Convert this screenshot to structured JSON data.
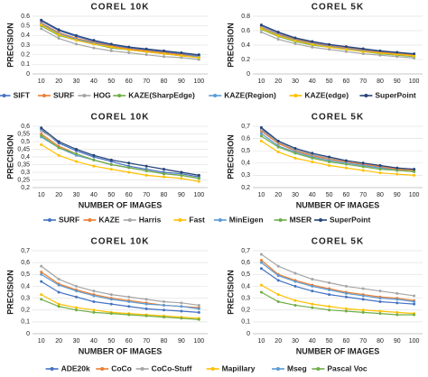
{
  "chart_data": [
    {
      "type": "line",
      "title": "COREL 10K",
      "y_label": "PRECISION",
      "categories": [
        10,
        20,
        30,
        40,
        50,
        60,
        70,
        80,
        90,
        100
      ],
      "ylim": [
        0,
        0.6
      ],
      "yticks": [
        0,
        0.1,
        0.2,
        0.3,
        0.4,
        0.5,
        0.6
      ],
      "grid": true,
      "legend": "bottom",
      "series": [
        {
          "name": "SIFT",
          "color": "#4472c4",
          "values": [
            0.55,
            0.45,
            0.39,
            0.34,
            0.3,
            0.27,
            0.25,
            0.23,
            0.21,
            0.19
          ]
        },
        {
          "name": "SURF",
          "color": "#ed7d31",
          "values": [
            0.53,
            0.43,
            0.37,
            0.33,
            0.29,
            0.26,
            0.24,
            0.22,
            0.2,
            0.18
          ]
        },
        {
          "name": "HOG",
          "color": "#a5a5a5",
          "values": [
            0.47,
            0.37,
            0.31,
            0.27,
            0.24,
            0.22,
            0.2,
            0.18,
            0.17,
            0.15
          ]
        },
        {
          "name": "KAZE(SharpEdge)",
          "color": "#70ad47",
          "values": [
            0.5,
            0.4,
            0.35,
            0.31,
            0.27,
            0.25,
            0.23,
            0.21,
            0.19,
            0.17
          ]
        },
        {
          "name": "KAZE(Region)",
          "color": "#5b9bd5",
          "values": [
            0.52,
            0.42,
            0.36,
            0.32,
            0.28,
            0.25,
            0.23,
            0.21,
            0.19,
            0.18
          ]
        },
        {
          "name": "KAZE(edge)",
          "color": "#ffc000",
          "values": [
            0.51,
            0.41,
            0.35,
            0.31,
            0.28,
            0.25,
            0.23,
            0.21,
            0.19,
            0.17
          ]
        },
        {
          "name": "SuperPoint",
          "color": "#264478",
          "values": [
            0.56,
            0.46,
            0.4,
            0.35,
            0.31,
            0.28,
            0.26,
            0.24,
            0.22,
            0.2
          ]
        }
      ]
    },
    {
      "type": "line",
      "title": "COREL 5K",
      "y_label": "PRECISION",
      "categories": [
        10,
        20,
        30,
        40,
        50,
        60,
        70,
        80,
        90,
        100
      ],
      "ylim": [
        0,
        0.8
      ],
      "yticks": [
        0,
        0.2,
        0.4,
        0.6,
        0.8
      ],
      "grid": true,
      "series": [
        {
          "color": "#4472c4",
          "values": [
            0.67,
            0.57,
            0.49,
            0.44,
            0.4,
            0.37,
            0.34,
            0.31,
            0.29,
            0.27
          ]
        },
        {
          "color": "#ed7d31",
          "values": [
            0.65,
            0.55,
            0.48,
            0.43,
            0.39,
            0.36,
            0.33,
            0.3,
            0.28,
            0.26
          ]
        },
        {
          "color": "#a5a5a5",
          "values": [
            0.58,
            0.48,
            0.42,
            0.37,
            0.34,
            0.31,
            0.28,
            0.26,
            0.24,
            0.22
          ]
        },
        {
          "color": "#70ad47",
          "values": [
            0.62,
            0.52,
            0.45,
            0.4,
            0.37,
            0.34,
            0.31,
            0.28,
            0.26,
            0.24
          ]
        },
        {
          "color": "#5b9bd5",
          "values": [
            0.64,
            0.54,
            0.47,
            0.42,
            0.38,
            0.35,
            0.32,
            0.29,
            0.27,
            0.25
          ]
        },
        {
          "color": "#ffc000",
          "values": [
            0.63,
            0.53,
            0.46,
            0.41,
            0.37,
            0.34,
            0.31,
            0.29,
            0.27,
            0.25
          ]
        },
        {
          "color": "#264478",
          "values": [
            0.68,
            0.58,
            0.5,
            0.45,
            0.41,
            0.38,
            0.35,
            0.32,
            0.3,
            0.28
          ]
        }
      ]
    },
    {
      "type": "line",
      "title": "COREL 10K",
      "y_label": "PRECISION",
      "x_label": "NUMBER OF IMAGES",
      "categories": [
        10,
        20,
        30,
        40,
        50,
        60,
        70,
        80,
        90,
        100
      ],
      "ylim": [
        0.2,
        0.6
      ],
      "yticks": [
        {
          "value": 0.2,
          "label": "0,2"
        },
        {
          "value": 0.25,
          "label": "0,25"
        },
        {
          "value": 0.3,
          "label": "0,3"
        },
        {
          "value": 0.35,
          "label": "0,35"
        },
        {
          "value": 0.4,
          "label": "0,4"
        },
        {
          "value": 0.45,
          "label": "0,45"
        },
        {
          "value": 0.5,
          "label": "0,5"
        },
        {
          "value": 0.55,
          "label": "0,55"
        },
        {
          "value": 0.6,
          "label": "0,6"
        }
      ],
      "grid": true,
      "legend": "bottom",
      "series": [
        {
          "name": "SURF",
          "color": "#4472c4",
          "values": [
            0.58,
            0.49,
            0.44,
            0.4,
            0.37,
            0.34,
            0.32,
            0.3,
            0.29,
            0.27
          ]
        },
        {
          "name": "KAZE",
          "color": "#ed7d31",
          "values": [
            0.55,
            0.47,
            0.42,
            0.38,
            0.35,
            0.33,
            0.31,
            0.29,
            0.28,
            0.26
          ]
        },
        {
          "name": "Harris",
          "color": "#a5a5a5",
          "values": [
            0.57,
            0.5,
            0.45,
            0.41,
            0.38,
            0.36,
            0.34,
            0.32,
            0.3,
            0.28
          ]
        },
        {
          "name": "Fast",
          "color": "#ffc000",
          "values": [
            0.48,
            0.41,
            0.37,
            0.34,
            0.32,
            0.3,
            0.28,
            0.27,
            0.26,
            0.24
          ]
        },
        {
          "name": "MinEigen",
          "color": "#5b9bd5",
          "values": [
            0.53,
            0.46,
            0.41,
            0.38,
            0.35,
            0.33,
            0.31,
            0.29,
            0.28,
            0.26
          ]
        },
        {
          "name": "MSER",
          "color": "#70ad47",
          "values": [
            0.54,
            0.46,
            0.42,
            0.38,
            0.35,
            0.33,
            0.31,
            0.29,
            0.28,
            0.26
          ]
        },
        {
          "name": "SuperPoint",
          "color": "#264478",
          "values": [
            0.59,
            0.5,
            0.45,
            0.41,
            0.38,
            0.36,
            0.34,
            0.32,
            0.3,
            0.28
          ]
        }
      ]
    },
    {
      "type": "line",
      "title": "COREL 5K",
      "y_label": "PRECISION",
      "x_label": "NUMBER OF IMAGES",
      "categories": [
        10,
        20,
        30,
        40,
        50,
        60,
        70,
        80,
        90,
        100
      ],
      "ylim": [
        0.2,
        0.7
      ],
      "yticks": [
        {
          "value": 0.2,
          "label": "0,2"
        },
        {
          "value": 0.3,
          "label": "0,3"
        },
        {
          "value": 0.4,
          "label": "0,4"
        },
        {
          "value": 0.5,
          "label": "0,5"
        },
        {
          "value": 0.6,
          "label": "0,6"
        },
        {
          "value": 0.7,
          "label": "0,7"
        }
      ],
      "grid": true,
      "series": [
        {
          "color": "#4472c4",
          "values": [
            0.68,
            0.57,
            0.51,
            0.47,
            0.44,
            0.41,
            0.39,
            0.37,
            0.35,
            0.34
          ]
        },
        {
          "color": "#ed7d31",
          "values": [
            0.66,
            0.56,
            0.5,
            0.46,
            0.43,
            0.41,
            0.39,
            0.37,
            0.35,
            0.34
          ]
        },
        {
          "color": "#a5a5a5",
          "values": [
            0.67,
            0.57,
            0.51,
            0.47,
            0.44,
            0.42,
            0.4,
            0.38,
            0.36,
            0.35
          ]
        },
        {
          "color": "#ffc000",
          "values": [
            0.58,
            0.49,
            0.44,
            0.41,
            0.38,
            0.36,
            0.34,
            0.32,
            0.31,
            0.3
          ]
        },
        {
          "color": "#5b9bd5",
          "values": [
            0.64,
            0.54,
            0.49,
            0.45,
            0.42,
            0.4,
            0.38,
            0.36,
            0.34,
            0.33
          ]
        },
        {
          "color": "#70ad47",
          "values": [
            0.62,
            0.53,
            0.48,
            0.44,
            0.41,
            0.39,
            0.37,
            0.35,
            0.34,
            0.33
          ]
        },
        {
          "color": "#264478",
          "values": [
            0.69,
            0.58,
            0.52,
            0.48,
            0.45,
            0.42,
            0.4,
            0.38,
            0.36,
            0.35
          ]
        }
      ]
    },
    {
      "type": "line",
      "title": "COREL 10K",
      "y_label": "PRECISION",
      "x_label": "NUMBER OF IMAGES",
      "categories": [
        10,
        20,
        30,
        40,
        50,
        60,
        70,
        80,
        90,
        100
      ],
      "ylim": [
        0,
        0.7
      ],
      "yticks": [
        0,
        {
          "value": 0.1,
          "label": "0,1"
        },
        {
          "value": 0.2,
          "label": "0,2"
        },
        {
          "value": 0.3,
          "label": "0,3"
        },
        {
          "value": 0.4,
          "label": "0,4"
        },
        {
          "value": 0.5,
          "label": "0,5"
        },
        {
          "value": 0.6,
          "label": "0,6"
        },
        {
          "value": 0.7,
          "label": "0,7"
        }
      ],
      "grid": true,
      "legend": "bottom",
      "series": [
        {
          "name": "ADE20k",
          "color": "#4472c4",
          "values": [
            0.44,
            0.35,
            0.31,
            0.27,
            0.25,
            0.23,
            0.21,
            0.2,
            0.19,
            0.18
          ]
        },
        {
          "name": "CoCo",
          "color": "#ed7d31",
          "values": [
            0.52,
            0.42,
            0.37,
            0.33,
            0.3,
            0.28,
            0.26,
            0.24,
            0.23,
            0.22
          ]
        },
        {
          "name": "CoCo-Stuff",
          "color": "#a5a5a5",
          "values": [
            0.57,
            0.46,
            0.4,
            0.36,
            0.33,
            0.31,
            0.29,
            0.27,
            0.26,
            0.24
          ]
        },
        {
          "name": "Mapillary",
          "color": "#ffc000",
          "values": [
            0.33,
            0.25,
            0.22,
            0.2,
            0.18,
            0.17,
            0.16,
            0.15,
            0.14,
            0.13
          ]
        },
        {
          "name": "Mseg",
          "color": "#5b9bd5",
          "values": [
            0.5,
            0.41,
            0.36,
            0.32,
            0.29,
            0.27,
            0.25,
            0.24,
            0.23,
            0.21
          ]
        },
        {
          "name": "Pascal Voc",
          "color": "#70ad47",
          "values": [
            0.29,
            0.23,
            0.2,
            0.18,
            0.17,
            0.16,
            0.15,
            0.14,
            0.13,
            0.12
          ]
        }
      ]
    },
    {
      "type": "line",
      "title": "COREL 5K",
      "y_label": "PRECISION",
      "x_label": "NUMBER OF IMAGES",
      "categories": [
        10,
        20,
        30,
        40,
        50,
        60,
        70,
        80,
        90,
        100
      ],
      "ylim": [
        0,
        0.7
      ],
      "yticks": [
        0,
        {
          "value": 0.1,
          "label": "0,1"
        },
        {
          "value": 0.2,
          "label": "0,2"
        },
        {
          "value": 0.3,
          "label": "0,3"
        },
        {
          "value": 0.4,
          "label": "0,4"
        },
        {
          "value": 0.5,
          "label": "0,5"
        },
        {
          "value": 0.6,
          "label": "0,6"
        },
        {
          "value": 0.7,
          "label": "0,7"
        }
      ],
      "grid": true,
      "series": [
        {
          "color": "#4472c4",
          "values": [
            0.55,
            0.45,
            0.4,
            0.36,
            0.33,
            0.31,
            0.29,
            0.27,
            0.26,
            0.25
          ]
        },
        {
          "color": "#ed7d31",
          "values": [
            0.62,
            0.5,
            0.45,
            0.41,
            0.38,
            0.35,
            0.33,
            0.31,
            0.3,
            0.28
          ]
        },
        {
          "color": "#a5a5a5",
          "values": [
            0.67,
            0.57,
            0.51,
            0.46,
            0.43,
            0.4,
            0.38,
            0.36,
            0.34,
            0.32
          ]
        },
        {
          "color": "#ffc000",
          "values": [
            0.41,
            0.33,
            0.28,
            0.25,
            0.23,
            0.21,
            0.2,
            0.19,
            0.18,
            0.17
          ]
        },
        {
          "color": "#5b9bd5",
          "values": [
            0.6,
            0.49,
            0.44,
            0.4,
            0.37,
            0.34,
            0.32,
            0.3,
            0.29,
            0.27
          ]
        },
        {
          "color": "#70ad47",
          "values": [
            0.35,
            0.27,
            0.24,
            0.22,
            0.2,
            0.19,
            0.18,
            0.17,
            0.16,
            0.16
          ]
        }
      ]
    }
  ]
}
